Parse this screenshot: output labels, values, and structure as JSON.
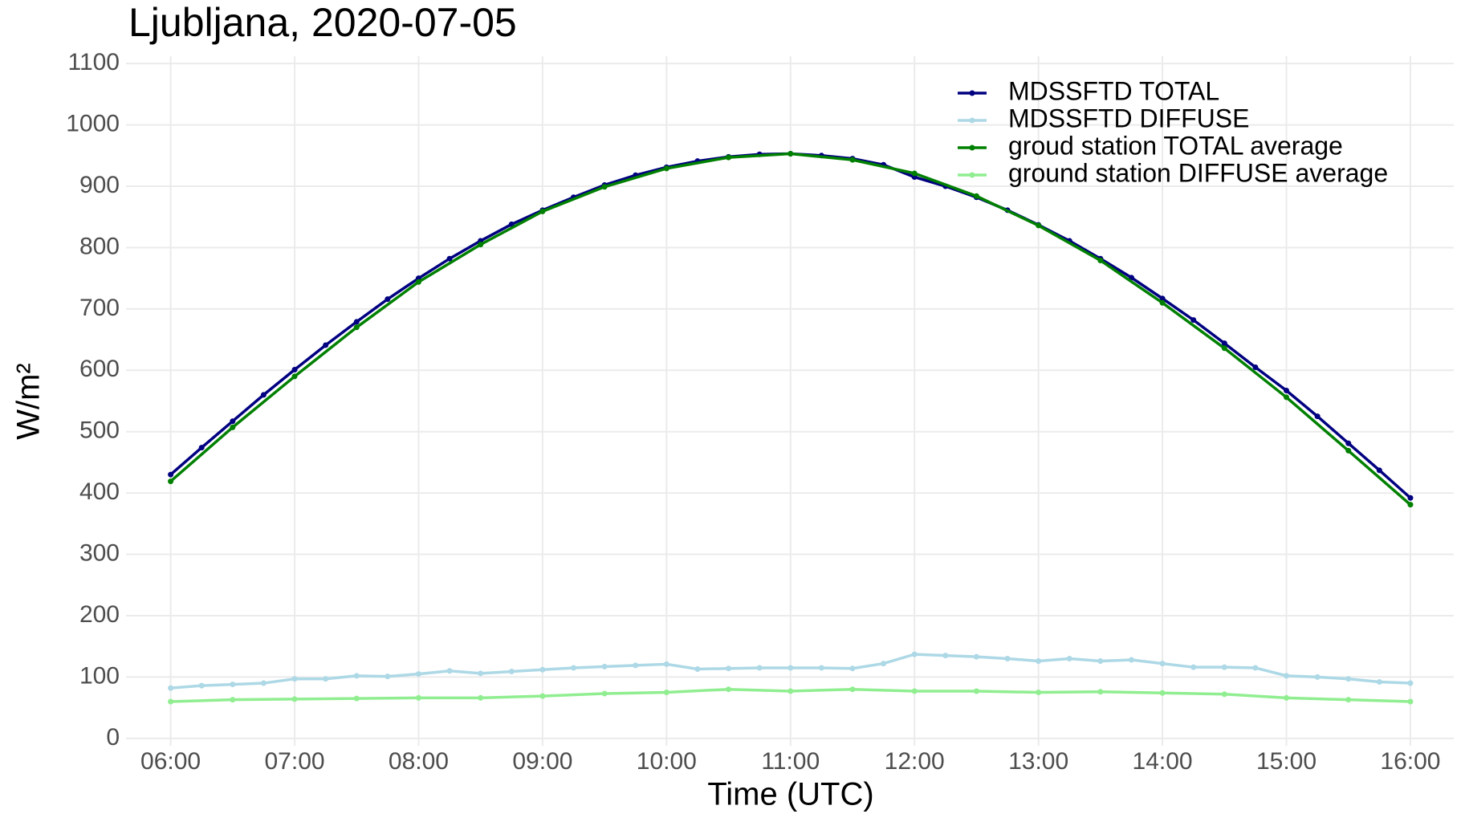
{
  "chart_data": {
    "type": "line",
    "title": "Ljubljana, 2020-07-05",
    "x_label": "Time (UTC)",
    "y_label": "W/m²",
    "xlim": [
      5.64,
      16.35
    ],
    "ylim": [
      -12,
      1112
    ],
    "xticks": [
      {
        "value": 6,
        "label": "06:00"
      },
      {
        "value": 7,
        "label": "07:00"
      },
      {
        "value": 8,
        "label": "08:00"
      },
      {
        "value": 9,
        "label": "09:00"
      },
      {
        "value": 10,
        "label": "10:00"
      },
      {
        "value": 11,
        "label": "11:00"
      },
      {
        "value": 12,
        "label": "12:00"
      },
      {
        "value": 13,
        "label": "13:00"
      },
      {
        "value": 14,
        "label": "14:00"
      },
      {
        "value": 15,
        "label": "15:00"
      },
      {
        "value": 16,
        "label": "16:00"
      }
    ],
    "yticks": [
      0,
      100,
      200,
      300,
      400,
      500,
      600,
      700,
      800,
      900,
      1000,
      1100
    ],
    "grid": true,
    "legend": "top-right",
    "series": [
      {
        "name": "MDSSFTD TOTAL",
        "color": "#000080",
        "x": [
          6,
          6.25,
          6.5,
          6.75,
          7,
          7.25,
          7.5,
          7.75,
          8,
          8.25,
          8.5,
          8.75,
          9,
          9.25,
          9.5,
          9.75,
          10,
          10.25,
          10.5,
          10.75,
          11,
          11.25,
          11.5,
          11.75,
          12,
          12.25,
          12.5,
          12.75,
          13,
          13.25,
          13.5,
          13.75,
          14,
          14.25,
          14.5,
          14.75,
          15,
          15.25,
          15.5,
          15.75,
          16
        ],
        "values": [
          430,
          474,
          517,
          560,
          601,
          641,
          679,
          716,
          750,
          782,
          811,
          838,
          861,
          882,
          902,
          918,
          931,
          941,
          948,
          952,
          953,
          950,
          945,
          935,
          915,
          900,
          882,
          861,
          837,
          811,
          782,
          751,
          717,
          682,
          644,
          605,
          567,
          525,
          481,
          437,
          392
        ]
      },
      {
        "name": "MDSSFTD DIFFUSE",
        "color": "#add8e6",
        "x": [
          6,
          6.25,
          6.5,
          6.75,
          7,
          7.25,
          7.5,
          7.75,
          8,
          8.25,
          8.5,
          8.75,
          9,
          9.25,
          9.5,
          9.75,
          10,
          10.25,
          10.5,
          10.75,
          11,
          11.25,
          11.5,
          11.75,
          12,
          12.25,
          12.5,
          12.75,
          13,
          13.25,
          13.5,
          13.75,
          14,
          14.25,
          14.5,
          14.75,
          15,
          15.25,
          15.5,
          15.75,
          16
        ],
        "values": [
          82,
          86,
          88,
          90,
          97,
          97,
          102,
          101,
          105,
          110,
          106,
          109,
          112,
          115,
          117,
          119,
          121,
          113,
          114,
          115,
          115,
          115,
          114,
          122,
          137,
          135,
          133,
          130,
          126,
          130,
          126,
          128,
          122,
          116,
          116,
          115,
          102,
          100,
          97,
          92,
          90
        ]
      },
      {
        "name": "groud station TOTAL average",
        "color": "#008000",
        "x": [
          6,
          6.5,
          7,
          7.5,
          8,
          8.5,
          9,
          9.5,
          10,
          10.5,
          11,
          11.5,
          12,
          12.5,
          13,
          13.5,
          14,
          14.5,
          15,
          15.5,
          16
        ],
        "values": [
          419,
          507,
          590,
          670,
          744,
          805,
          859,
          899,
          929,
          947,
          953,
          943,
          921,
          884,
          836,
          779,
          710,
          636,
          556,
          469,
          381
        ]
      },
      {
        "name": "ground station DIFFUSE average",
        "color": "#90ee90",
        "x": [
          6,
          6.5,
          7,
          7.5,
          8,
          8.5,
          9,
          9.5,
          10,
          10.5,
          11,
          11.5,
          12,
          12.5,
          13,
          13.5,
          14,
          14.5,
          15,
          15.5,
          16
        ],
        "values": [
          60,
          63,
          64,
          65,
          66,
          66,
          69,
          73,
          75,
          80,
          77,
          80,
          77,
          77,
          75,
          76,
          74,
          72,
          66,
          63,
          60
        ]
      }
    ]
  }
}
